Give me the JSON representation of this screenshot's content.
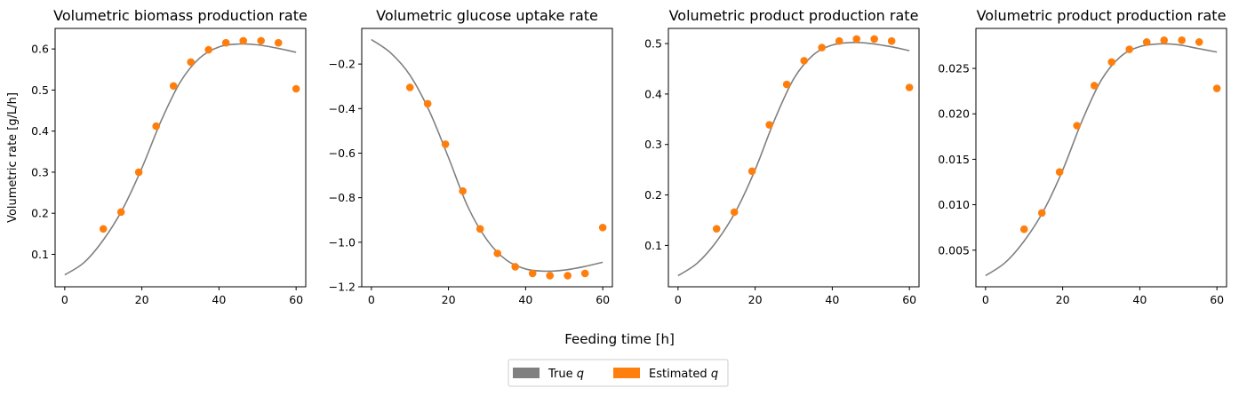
{
  "figure": {
    "xlabel": "Feeding time [h]",
    "legend": {
      "placement": "bottom-center",
      "entries": [
        {
          "prefix": "True ",
          "var": "q",
          "color": "#808080"
        },
        {
          "prefix": "Estimated ",
          "var": "q",
          "color": "#ff7f0e"
        }
      ]
    }
  },
  "chart_data": [
    {
      "type": "scatter",
      "title": "Volumetric biomass production rate",
      "ylabel": "Volumetric rate [g/L/h]",
      "xlim": [
        -2.5,
        62.5
      ],
      "ylim": [
        0.021,
        0.65
      ],
      "xticks": [
        0,
        20,
        40,
        60
      ],
      "yticks": [
        0.1,
        0.2,
        0.3,
        0.4,
        0.5,
        0.6
      ],
      "ytick_decimals": 1,
      "series": [
        {
          "role": "true",
          "style": "line",
          "color": "#808080",
          "x": [
            0,
            5,
            10,
            15,
            20,
            25,
            30,
            35,
            40,
            45,
            50,
            55,
            60
          ],
          "y": [
            0.05,
            0.08,
            0.135,
            0.21,
            0.31,
            0.425,
            0.52,
            0.578,
            0.605,
            0.612,
            0.61,
            0.602,
            0.592
          ]
        },
        {
          "role": "estimated",
          "style": "markers",
          "color": "#ff7f0e",
          "x": [
            10,
            14.6,
            19.2,
            23.7,
            28.2,
            32.7,
            37.3,
            41.8,
            46.3,
            50.9,
            55.4,
            60
          ],
          "y": [
            0.162,
            0.203,
            0.3,
            0.412,
            0.51,
            0.568,
            0.598,
            0.615,
            0.62,
            0.62,
            0.615,
            0.503
          ]
        }
      ]
    },
    {
      "type": "scatter",
      "title": "Volumetric glucose uptake rate",
      "ylabel": "",
      "xlim": [
        -2.5,
        62.5
      ],
      "ylim": [
        -1.2,
        -0.04
      ],
      "xticks": [
        0,
        20,
        40,
        60
      ],
      "yticks": [
        -1.2,
        -1.0,
        -0.8,
        -0.6,
        -0.4,
        -0.2
      ],
      "ytick_decimals": 1,
      "series": [
        {
          "role": "true",
          "style": "line",
          "color": "#808080",
          "x": [
            0,
            5,
            10,
            15,
            20,
            25,
            30,
            35,
            40,
            45,
            50,
            55,
            60
          ],
          "y": [
            -0.09,
            -0.15,
            -0.25,
            -0.41,
            -0.62,
            -0.84,
            -0.99,
            -1.08,
            -1.12,
            -1.13,
            -1.125,
            -1.11,
            -1.09
          ]
        },
        {
          "role": "estimated",
          "style": "markers",
          "color": "#ff7f0e",
          "x": [
            10,
            14.6,
            19.2,
            23.7,
            28.2,
            32.7,
            37.3,
            41.8,
            46.3,
            50.9,
            55.4,
            60
          ],
          "y": [
            -0.305,
            -0.378,
            -0.56,
            -0.77,
            -0.94,
            -1.05,
            -1.11,
            -1.14,
            -1.15,
            -1.15,
            -1.14,
            -0.934
          ]
        }
      ]
    },
    {
      "type": "scatter",
      "title": "Volumetric product production rate",
      "ylabel": "",
      "xlim": [
        -2.5,
        62.5
      ],
      "ylim": [
        0.018,
        0.53
      ],
      "xticks": [
        0,
        20,
        40,
        60
      ],
      "yticks": [
        0.1,
        0.2,
        0.3,
        0.4,
        0.5
      ],
      "ytick_decimals": 1,
      "series": [
        {
          "role": "true",
          "style": "line",
          "color": "#808080",
          "x": [
            0,
            5,
            10,
            15,
            20,
            25,
            30,
            35,
            40,
            45,
            50,
            55,
            60
          ],
          "y": [
            0.04,
            0.065,
            0.108,
            0.168,
            0.25,
            0.348,
            0.43,
            0.477,
            0.497,
            0.502,
            0.5,
            0.494,
            0.486
          ]
        },
        {
          "role": "estimated",
          "style": "markers",
          "color": "#ff7f0e",
          "x": [
            10,
            14.6,
            19.2,
            23.7,
            28.2,
            32.7,
            37.3,
            41.8,
            46.3,
            50.9,
            55.4,
            60
          ],
          "y": [
            0.133,
            0.166,
            0.247,
            0.339,
            0.419,
            0.466,
            0.492,
            0.505,
            0.509,
            0.509,
            0.505,
            0.413
          ]
        }
      ]
    },
    {
      "type": "scatter",
      "title": "Volumetric product production rate",
      "ylabel": "",
      "xlim": [
        -2.5,
        62.5
      ],
      "ylim": [
        0.00097,
        0.0294
      ],
      "xticks": [
        0,
        20,
        40,
        60
      ],
      "yticks": [
        0.005,
        0.01,
        0.015,
        0.02,
        0.025
      ],
      "ytick_decimals": 3,
      "series": [
        {
          "role": "true",
          "style": "line",
          "color": "#808080",
          "x": [
            0,
            5,
            10,
            15,
            20,
            25,
            30,
            35,
            40,
            45,
            50,
            55,
            60
          ],
          "y": [
            0.0022,
            0.0036,
            0.006,
            0.0093,
            0.0138,
            0.0192,
            0.0237,
            0.0263,
            0.0274,
            0.0277,
            0.0276,
            0.0272,
            0.0268
          ]
        },
        {
          "role": "estimated",
          "style": "markers",
          "color": "#ff7f0e",
          "x": [
            10,
            14.6,
            19.2,
            23.7,
            28.2,
            32.7,
            37.3,
            41.8,
            46.3,
            50.9,
            55.4,
            60
          ],
          "y": [
            0.0073,
            0.0091,
            0.0136,
            0.0187,
            0.0231,
            0.0257,
            0.0271,
            0.0279,
            0.0281,
            0.0281,
            0.0279,
            0.0228
          ]
        }
      ]
    }
  ]
}
